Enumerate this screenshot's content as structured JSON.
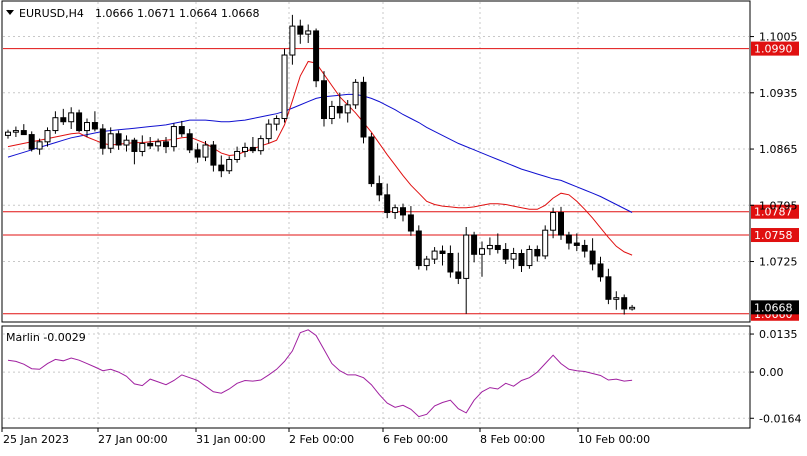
{
  "header": {
    "symbol": "EURUSD,H4",
    "ohlc": "1.0666 1.0671 1.0664 1.0668"
  },
  "indicator": {
    "label": "Marlin -0.0029"
  },
  "colors": {
    "background": "#ffffff",
    "grid": "#c8c8c8",
    "candle": "#000000",
    "ma_fast": "#e01010",
    "ma_slow": "#1010d0",
    "levels": "#e01010",
    "oscillator": "#a020a0",
    "current_price_tag": "#000000"
  },
  "chart_data": [
    {
      "type": "candlestick",
      "symbol": "EURUSD",
      "timeframe": "H4",
      "ylim": [
        1.0651,
        1.1048
      ],
      "y_ticks": [
        "1.1005",
        "1.0935",
        "1.0865",
        "1.0795",
        "1.0725"
      ],
      "x_ticks": [
        "25 Jan 2023",
        "27 Jan 00:00",
        "31 Jan 00:00",
        "2 Feb 00:00",
        "6 Feb 00:00",
        "8 Feb 00:00",
        "10 Feb 00:00"
      ],
      "levels": [
        {
          "label": "1.0990",
          "value": 1.099
        },
        {
          "label": "1.0787",
          "value": 1.0787
        },
        {
          "label": "1.0758",
          "value": 1.0758
        },
        {
          "label": "1.0660",
          "value": 1.066
        }
      ],
      "current_price": {
        "label": "1.0668",
        "value": 1.0668
      },
      "grid": true,
      "candles": [
        [
          1.0882,
          1.0889,
          1.0878,
          1.0886
        ],
        [
          1.0886,
          1.0893,
          1.088,
          1.0888
        ],
        [
          1.0888,
          1.0896,
          1.0884,
          1.0883
        ],
        [
          1.0883,
          1.0887,
          1.0862,
          1.0865
        ],
        [
          1.0865,
          1.0878,
          1.0858,
          1.0874
        ],
        [
          1.0874,
          1.0892,
          1.0868,
          1.0888
        ],
        [
          1.0888,
          1.0912,
          1.0884,
          1.0904
        ],
        [
          1.0904,
          1.0915,
          1.0895,
          1.0899
        ],
        [
          1.0899,
          1.0917,
          1.089,
          1.091
        ],
        [
          1.091,
          1.0914,
          1.0886,
          1.0888
        ],
        [
          1.0888,
          1.0903,
          1.088,
          1.0898
        ],
        [
          1.0898,
          1.0912,
          1.0887,
          1.089
        ],
        [
          1.089,
          1.0896,
          1.0858,
          1.0866
        ],
        [
          1.0866,
          1.0892,
          1.086,
          1.0884
        ],
        [
          1.0884,
          1.0888,
          1.0864,
          1.087
        ],
        [
          1.087,
          1.0882,
          1.0862,
          1.0876
        ],
        [
          1.0876,
          1.0879,
          1.0846,
          1.0862
        ],
        [
          1.0862,
          1.0882,
          1.0856,
          1.0872
        ],
        [
          1.0872,
          1.088,
          1.0865,
          1.0869
        ],
        [
          1.0869,
          1.0878,
          1.0862,
          1.0874
        ],
        [
          1.0874,
          1.088,
          1.086,
          1.0868
        ],
        [
          1.0868,
          1.0897,
          1.0862,
          1.0893
        ],
        [
          1.0893,
          1.09,
          1.088,
          1.0884
        ],
        [
          1.0884,
          1.089,
          1.086,
          1.0864
        ],
        [
          1.0864,
          1.0872,
          1.0848,
          1.0855
        ],
        [
          1.0855,
          1.0875,
          1.085,
          1.087
        ],
        [
          1.087,
          1.0875,
          1.0837,
          1.0845
        ],
        [
          1.0845,
          1.0857,
          1.083,
          1.0838
        ],
        [
          1.0838,
          1.0856,
          1.0834,
          1.0852
        ],
        [
          1.0852,
          1.0868,
          1.0848,
          1.0862
        ],
        [
          1.0862,
          1.0873,
          1.0855,
          1.0867
        ],
        [
          1.0867,
          1.088,
          1.086,
          1.0863
        ],
        [
          1.0863,
          1.0882,
          1.0858,
          1.0878
        ],
        [
          1.0878,
          1.0902,
          1.0872,
          1.0896
        ],
        [
          1.0896,
          1.0907,
          1.0888,
          1.0903
        ],
        [
          1.0903,
          1.099,
          1.0898,
          1.0982
        ],
        [
          1.0982,
          1.1032,
          1.097,
          1.1018
        ],
        [
          1.1018,
          1.1026,
          1.0996,
          1.1008
        ],
        [
          1.1008,
          1.102,
          1.0997,
          1.1012
        ],
        [
          1.1012,
          1.1015,
          1.0942,
          1.095
        ],
        [
          1.095,
          1.0962,
          1.0893,
          1.0903
        ],
        [
          1.0903,
          1.0925,
          1.0896,
          1.0918
        ],
        [
          1.0918,
          1.0935,
          1.0903,
          1.091
        ],
        [
          1.091,
          1.0926,
          1.0898,
          1.092
        ],
        [
          1.092,
          1.0952,
          1.0915,
          1.0948
        ],
        [
          1.0948,
          1.0955,
          1.0872,
          1.088
        ],
        [
          1.088,
          1.0885,
          1.0818,
          1.0822
        ],
        [
          1.0822,
          1.0832,
          1.08,
          1.0808
        ],
        [
          1.0808,
          1.0822,
          1.0779,
          1.0786
        ],
        [
          1.0786,
          1.0796,
          1.0778,
          1.0792
        ],
        [
          1.0792,
          1.0797,
          1.0775,
          1.0783
        ],
        [
          1.0783,
          1.0794,
          1.0757,
          1.0763
        ],
        [
          1.0763,
          1.077,
          1.0715,
          1.072
        ],
        [
          1.072,
          1.0732,
          1.0714,
          1.0728
        ],
        [
          1.0728,
          1.0743,
          1.0722,
          1.0738
        ],
        [
          1.0738,
          1.0745,
          1.072,
          1.0735
        ],
        [
          1.0735,
          1.0745,
          1.0705,
          1.0712
        ],
        [
          1.0712,
          1.0736,
          1.0697,
          1.0704
        ],
        [
          1.0704,
          1.0768,
          1.066,
          1.0758
        ],
        [
          1.0758,
          1.0762,
          1.0724,
          1.0734
        ],
        [
          1.0734,
          1.075,
          1.0706,
          1.0741
        ],
        [
          1.0741,
          1.0755,
          1.0733,
          1.0745
        ],
        [
          1.0745,
          1.076,
          1.0735,
          1.074
        ],
        [
          1.074,
          1.0748,
          1.0722,
          1.0728
        ],
        [
          1.0728,
          1.0742,
          1.0716,
          1.0735
        ],
        [
          1.0735,
          1.074,
          1.0712,
          1.072
        ],
        [
          1.072,
          1.0745,
          1.0716,
          1.074
        ],
        [
          1.074,
          1.0745,
          1.0725,
          1.0732
        ],
        [
          1.0732,
          1.077,
          1.0728,
          1.0764
        ],
        [
          1.0764,
          1.0792,
          1.0754,
          1.0786
        ],
        [
          1.0786,
          1.0793,
          1.0752,
          1.0758
        ],
        [
          1.0758,
          1.0762,
          1.074,
          1.0748
        ],
        [
          1.0748,
          1.076,
          1.0738,
          1.0745
        ],
        [
          1.0745,
          1.0752,
          1.073,
          1.0738
        ],
        [
          1.0738,
          1.0754,
          1.0714,
          1.0722
        ],
        [
          1.0722,
          1.0731,
          1.07,
          1.0706
        ],
        [
          1.0706,
          1.0716,
          1.0672,
          1.0678
        ],
        [
          1.0678,
          1.0688,
          1.0665,
          1.068
        ],
        [
          1.068,
          1.0684,
          1.0659,
          1.0666
        ],
        [
          1.0666,
          1.0671,
          1.0664,
          1.0668
        ]
      ],
      "ma_fast": [
        1.0868,
        1.087,
        1.0872,
        1.0874,
        1.0876,
        1.0878,
        1.088,
        1.0882,
        1.0884,
        1.0885,
        1.088,
        1.0876,
        1.0872,
        1.087,
        1.0871,
        1.0872,
        1.0873,
        1.0873,
        1.0874,
        1.0875,
        1.0876,
        1.0877,
        1.0879,
        1.088,
        1.0876,
        1.0872,
        1.0866,
        1.086,
        1.0857,
        1.0858,
        1.0862,
        1.0865,
        1.0869,
        1.0872,
        1.0876,
        1.0895,
        1.0925,
        1.0956,
        1.0974,
        1.0972,
        1.0958,
        1.0944,
        1.093,
        1.092,
        1.091,
        1.0898,
        1.0886,
        1.0872,
        1.0858,
        1.0845,
        1.0832,
        1.082,
        1.081,
        1.08,
        1.0796,
        1.0794,
        1.0793,
        1.0792,
        1.0792,
        1.0793,
        1.0795,
        1.0797,
        1.0797,
        1.0796,
        1.0794,
        1.0792,
        1.079,
        1.079,
        1.0795,
        1.0804,
        1.081,
        1.0808,
        1.08,
        1.079,
        1.0779,
        1.0767,
        1.0755,
        1.0744,
        1.0737,
        1.0733
      ],
      "ma_slow": [
        1.0855,
        1.0858,
        1.0861,
        1.0864,
        1.0867,
        1.087,
        1.0873,
        1.0876,
        1.0879,
        1.0881,
        1.0883,
        1.0885,
        1.0887,
        1.0888,
        1.0889,
        1.089,
        1.0891,
        1.0892,
        1.0893,
        1.0894,
        1.0895,
        1.0897,
        1.0899,
        1.0901,
        1.0901,
        1.0901,
        1.09,
        1.0899,
        1.0899,
        1.09,
        1.0901,
        1.0903,
        1.0905,
        1.0907,
        1.0909,
        1.0912,
        1.0916,
        1.092,
        1.0924,
        1.0928,
        1.093,
        1.0931,
        1.0932,
        1.0933,
        1.0933,
        1.0931,
        1.0928,
        1.0924,
        1.0919,
        1.0914,
        1.0908,
        1.0903,
        1.0898,
        1.0892,
        1.0887,
        1.0882,
        1.0877,
        1.0872,
        1.0868,
        1.0864,
        1.086,
        1.0856,
        1.0852,
        1.0848,
        1.0844,
        1.084,
        1.0837,
        1.0834,
        1.0831,
        1.0828,
        1.0826,
        1.0822,
        1.0818,
        1.0814,
        1.081,
        1.0806,
        1.0801,
        1.0796,
        1.0791,
        1.0786
      ]
    },
    {
      "type": "line",
      "name": "Marlin",
      "ylim": [
        -0.0195,
        0.016
      ],
      "y_ticks": [
        "0.0135",
        "0.00",
        "-0.0164"
      ],
      "values": [
        0.0042,
        0.0038,
        0.0028,
        0.0012,
        0.001,
        0.003,
        0.0045,
        0.004,
        0.005,
        0.0042,
        0.003,
        0.0018,
        0.0005,
        0.001,
        0.0,
        -0.0015,
        -0.0042,
        -0.0048,
        -0.0025,
        -0.0035,
        -0.0045,
        -0.003,
        -0.001,
        -0.002,
        -0.003,
        -0.005,
        -0.007,
        -0.0075,
        -0.006,
        -0.004,
        -0.003,
        -0.0032,
        -0.0028,
        -0.001,
        0.001,
        0.0038,
        0.0075,
        0.014,
        0.015,
        0.013,
        0.008,
        0.003,
        0.0005,
        -0.001,
        -0.001,
        -0.002,
        -0.0045,
        -0.008,
        -0.011,
        -0.0125,
        -0.0118,
        -0.0132,
        -0.0158,
        -0.015,
        -0.012,
        -0.0108,
        -0.01,
        -0.013,
        -0.0145,
        -0.01,
        -0.007,
        -0.0055,
        -0.006,
        -0.004,
        -0.005,
        -0.003,
        -0.002,
        0.0,
        0.003,
        0.006,
        0.003,
        0.001,
        0.0005,
        0.0002,
        -0.0005,
        -0.0012,
        -0.0028,
        -0.0025,
        -0.0032,
        -0.0029
      ]
    }
  ]
}
